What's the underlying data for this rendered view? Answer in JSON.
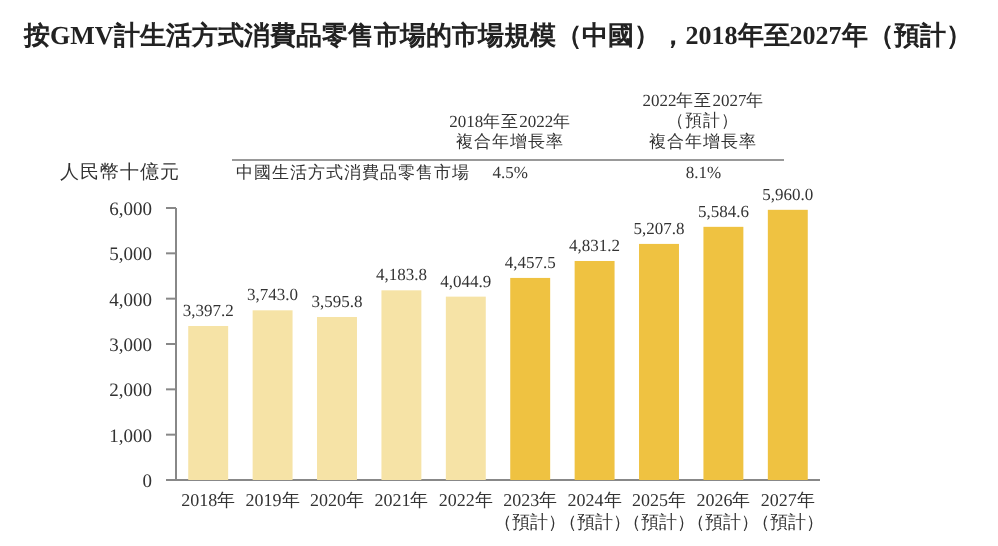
{
  "chart_data": {
    "type": "bar",
    "title": "按GMV計生活方式消費品零售市場的市場規模（中國），2018年至2027年（預計）",
    "ylabel": "人民幣十億元",
    "categories": [
      "2018年",
      "2019年",
      "2020年",
      "2021年",
      "2022年",
      "2023年（預計）",
      "2024年（預計）",
      "2025年（預計）",
      "2026年（預計）",
      "2027年（預計）"
    ],
    "values": [
      3397.2,
      3743.0,
      3595.8,
      4183.8,
      4044.9,
      4457.5,
      4831.2,
      5207.8,
      5584.6,
      5960.0
    ],
    "value_labels": [
      "3,397.2",
      "3,743.0",
      "3,595.8",
      "4,183.8",
      "4,044.9",
      "4,457.5",
      "4,831.2",
      "5,207.8",
      "5,584.6",
      "5,960.0"
    ],
    "colors": [
      "#f6e3a6",
      "#f6e3a6",
      "#f6e3a6",
      "#f6e3a6",
      "#f6e3a6",
      "#efc241",
      "#efc241",
      "#efc241",
      "#efc241",
      "#efc241"
    ],
    "ylim": [
      0,
      6000
    ],
    "yticks": [
      0,
      {
        "value": 1000,
        "label": "1,000"
      },
      {
        "value": 2000,
        "label": "2,000"
      },
      {
        "value": 3000,
        "label": "3,000"
      },
      {
        "value": 4000,
        "label": "4,000"
      },
      {
        "value": 5000,
        "label": "5,000"
      },
      {
        "value": 6000,
        "label": "6,000"
      }
    ],
    "annotations": [
      "2018年至2022年複合年增長率",
      "2022年至2027年（預計）複合年增長率",
      "中國生活方式消費品零售市場",
      "4.5%",
      "8.1%"
    ],
    "grid": false
  }
}
